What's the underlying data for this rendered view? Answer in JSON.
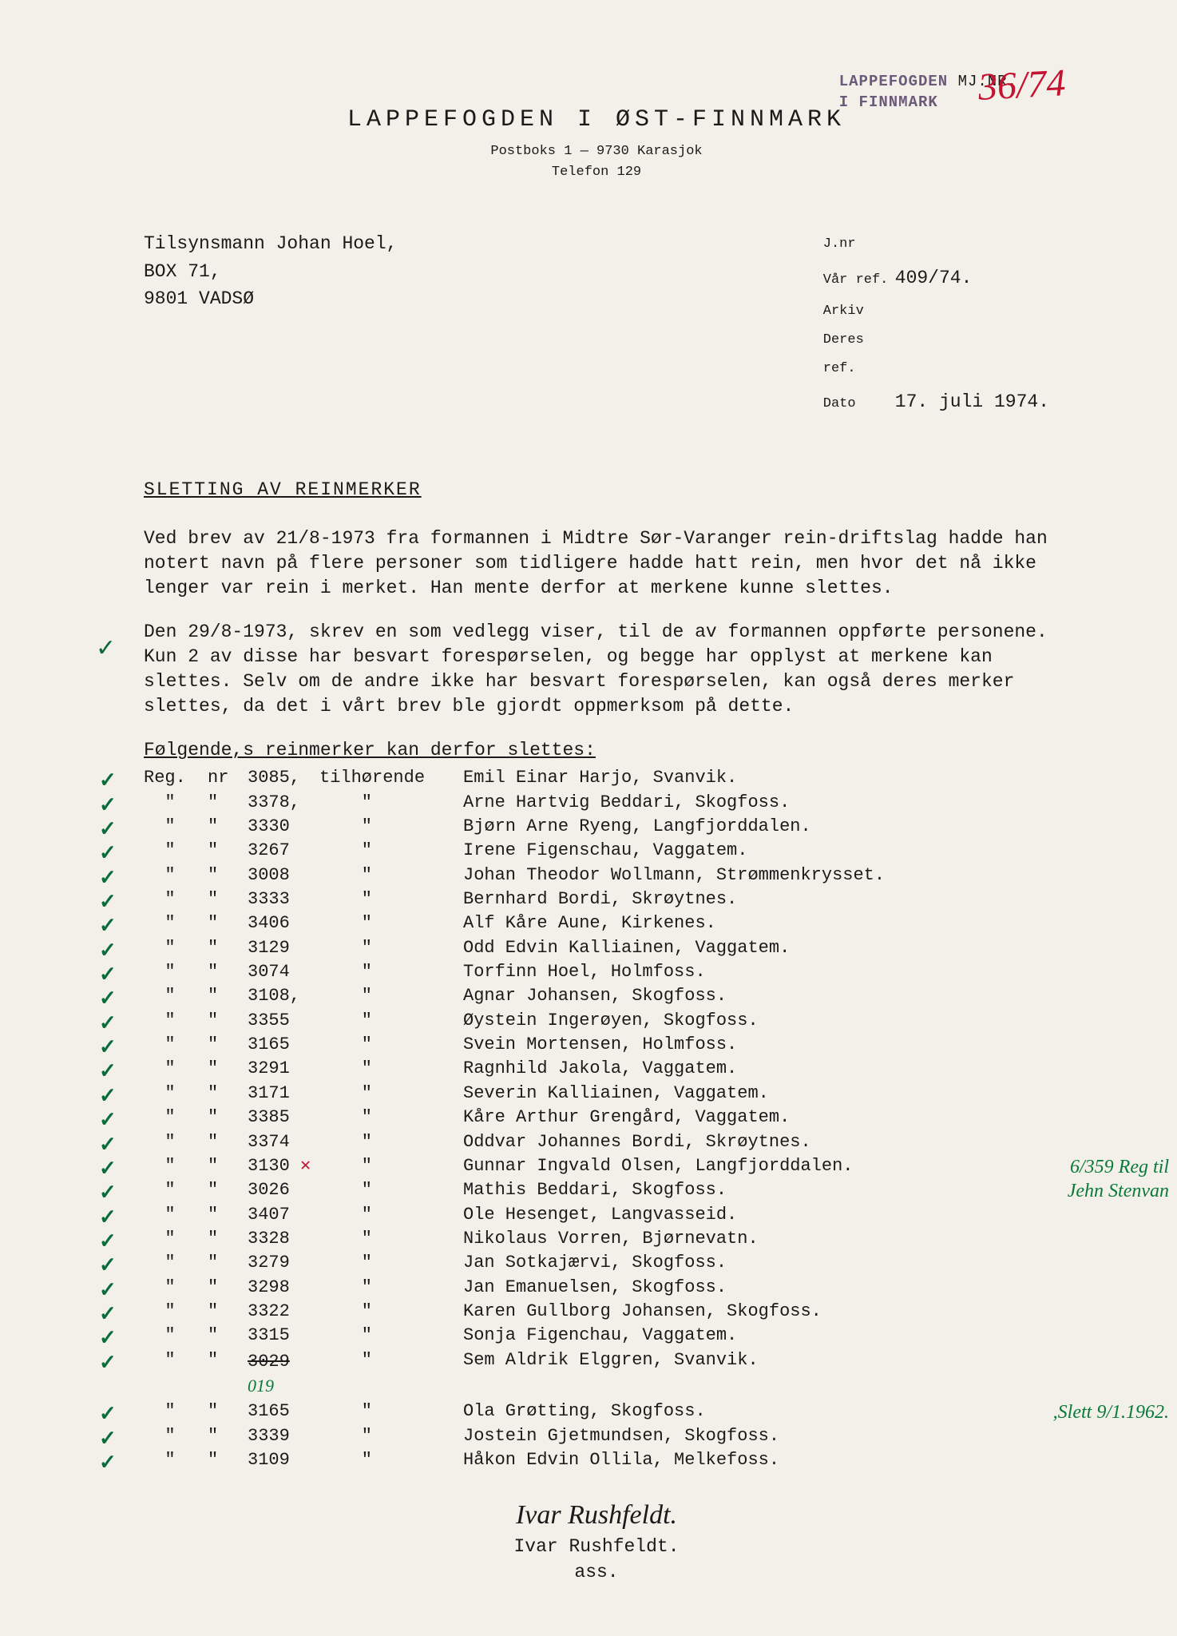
{
  "stamp": {
    "line1": "LAPPEFOGDEN",
    "line2": "I FINNMARK",
    "mjnr_label": "MJ.NR.",
    "mjnr_value": "36/74"
  },
  "letterhead": {
    "org": "LAPPEFOGDEN I ØST-FINNMARK",
    "postbox": "Postboks 1 — 9730 Karasjok",
    "telefon": "Telefon 129"
  },
  "recipient": {
    "line1": "Tilsynsmann Johan Hoel,",
    "line2": "BOX 71,",
    "line3": "9801 VADSØ"
  },
  "refs": {
    "jnr_label": "J.nr",
    "varref_label": "Vår ref.",
    "varref_value": "409/74.",
    "arkiv_label": "Arkiv",
    "deres_label": "Deres ref.",
    "dato_label": "Dato",
    "dato_value": "17. juli 1974."
  },
  "subject": "SLETTING AV REINMERKER",
  "para1": "Ved brev av 21/8-1973 fra formannen i Midtre Sør-Varanger rein-driftslag hadde han notert navn på flere personer som tidligere hadde hatt rein, men hvor det nå ikke lenger var rein i merket. Han mente derfor at merkene kunne slettes.",
  "para2": "Den 29/8-1973, skrev en som vedlegg viser, til de av formannen oppførte personene. Kun 2 av disse har besvart forespørselen, og begge har opplyst at merkene kan slettes. Selv om de andre ikke har besvart forespørselen, kan også deres merker slettes, da det i vårt brev ble gjordt oppmerksom på dette.",
  "intro": "Følgende,s reinmerker kan derfor slettes:",
  "first_row": {
    "reg": "Reg.",
    "nr": "nr",
    "num": "3085,",
    "til": "tilhørende",
    "name": "Emil Einar Harjo, Svanvik."
  },
  "rows": [
    {
      "num": "3378,",
      "name": "Arne Hartvig Beddari, Skogfoss."
    },
    {
      "num": "3330",
      "name": "Bjørn Arne Ryeng, Langfjorddalen."
    },
    {
      "num": "3267",
      "name": "Irene Figenschau, Vaggatem."
    },
    {
      "num": "3008",
      "name": "Johan Theodor Wollmann, Strømmenkrysset."
    },
    {
      "num": "3333",
      "name": "Bernhard Bordi, Skrøytnes."
    },
    {
      "num": "3406",
      "name": "Alf Kåre Aune, Kirkenes."
    },
    {
      "num": "3129",
      "name": "Odd Edvin Kalliainen, Vaggatem."
    },
    {
      "num": "3074",
      "name": "Torfinn Hoel, Holmfoss."
    },
    {
      "num": "3108,",
      "name": "Agnar Johansen, Skogfoss."
    },
    {
      "num": "3355",
      "name": "Øystein Ingerøyen, Skogfoss."
    },
    {
      "num": "3165",
      "name": "Svein Mortensen, Holmfoss."
    },
    {
      "num": "3291",
      "name": "Ragnhild Jakola, Vaggatem."
    },
    {
      "num": "3171",
      "name": "Severin Kalliainen, Vaggatem."
    },
    {
      "num": "3385",
      "name": "Kåre Arthur Grengård, Vaggatem."
    },
    {
      "num": "3374",
      "name": "Oddvar Johannes Bordi, Skrøytnes."
    },
    {
      "num": "3130",
      "name": "Gunnar Ingvald Olsen, Langfjorddalen.",
      "red_x": "✕",
      "annot": "6/359 Reg til"
    },
    {
      "num": "3026",
      "name": "Mathis Beddari, Skogfoss.",
      "annot2": "Jehn Stenvan"
    },
    {
      "num": "3407",
      "name": "Ole Hesenget, Langvasseid."
    },
    {
      "num": "3328",
      "name": "Nikolaus Vorren, Bjørnevatn."
    },
    {
      "num": "3279",
      "name": "Jan Sotkajærvi, Skogfoss."
    },
    {
      "num": "3298",
      "name": "Jan Emanuelsen, Skogfoss."
    },
    {
      "num": "3322",
      "name": "Karen Gullborg Johansen, Skogfoss."
    },
    {
      "num": "3315",
      "name": "Sonja Figenchau, Vaggatem."
    },
    {
      "num": "3029",
      "name": "Sem Aldrik Elggren, Svanvik.",
      "inline": "019"
    },
    {
      "num": "3165",
      "name": "Ola Grøtting, Skogfoss.",
      "annot": ",Slett 9/1.1962."
    },
    {
      "num": "3339",
      "name": "Jostein Gjetmundsen, Skogfoss."
    },
    {
      "num": "3109",
      "name": "Håkon Edvin Ollila, Melkefoss."
    }
  ],
  "ditto": "\"",
  "signature": {
    "script": "Ivar Rushfeldt.",
    "typed": "Ivar Rushfeldt.",
    "title": "ass."
  },
  "checkmark": "✓",
  "margin_check_y": 792
}
